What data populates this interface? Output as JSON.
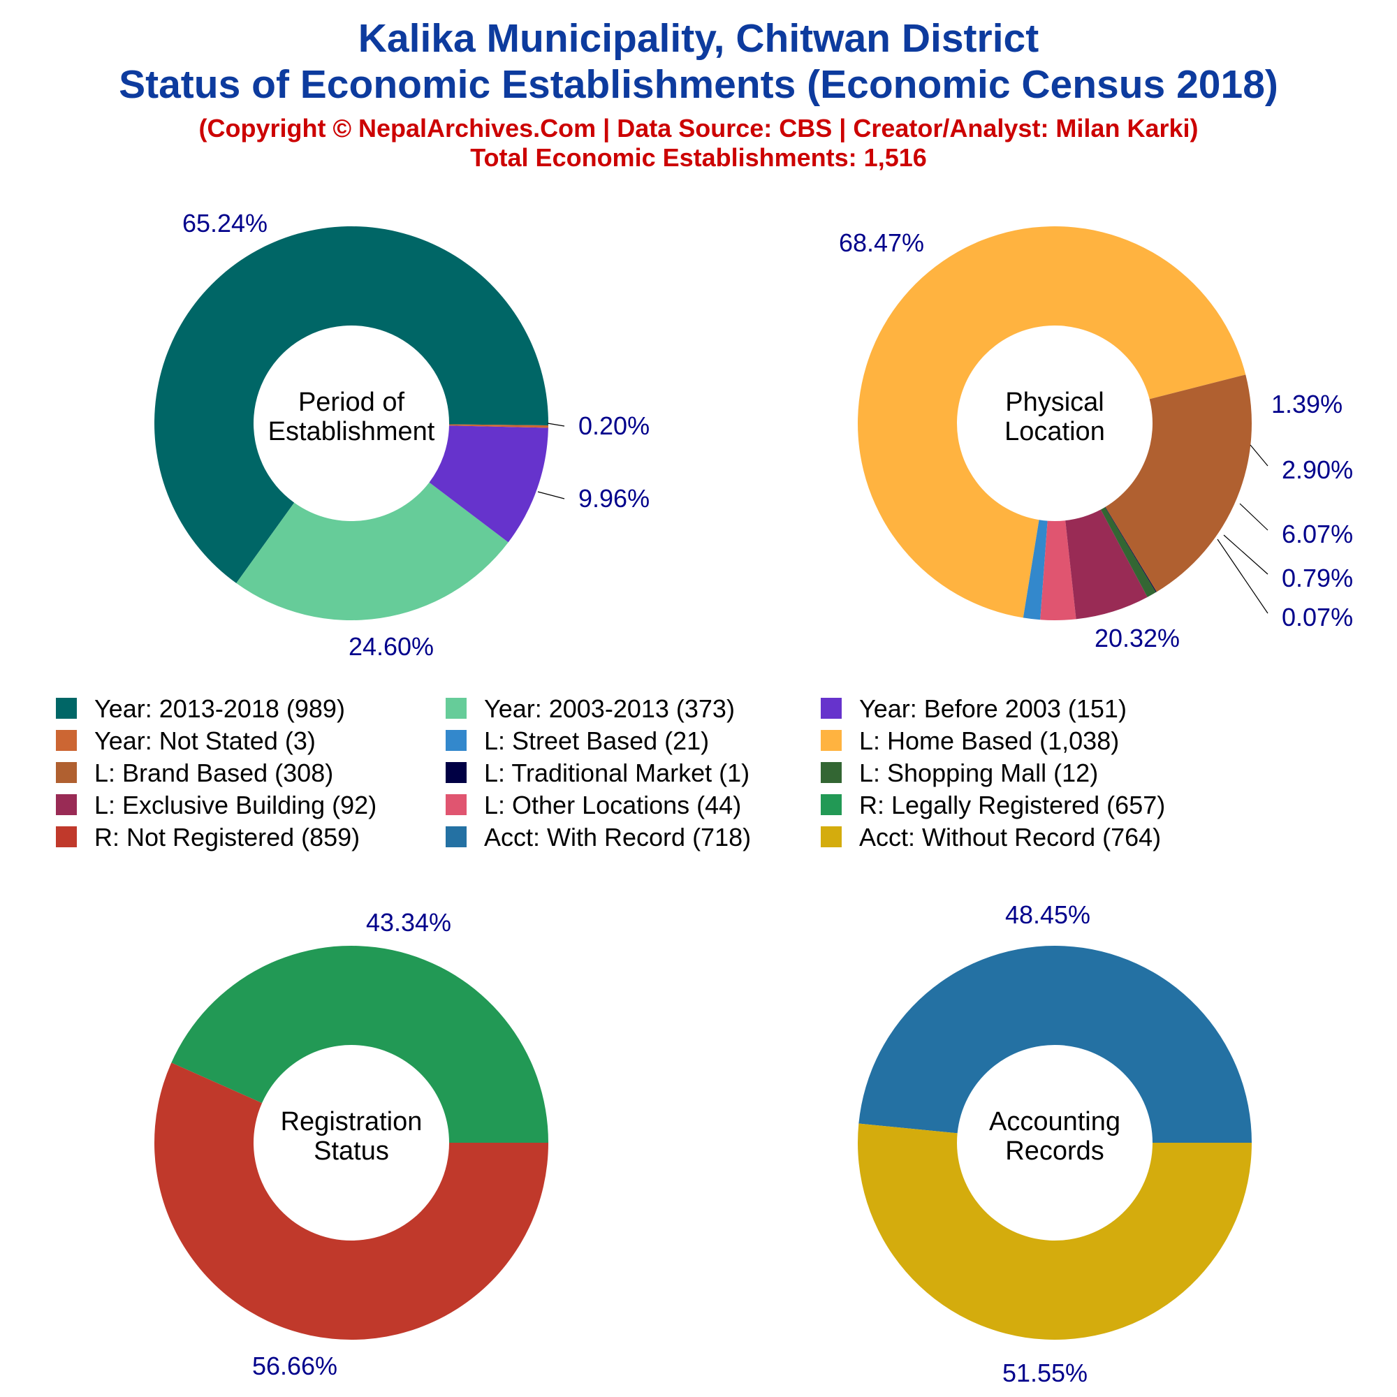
{
  "header": {
    "title_line1": "Kalika Municipality, Chitwan District",
    "title_line2": "Status of Economic Establishments (Economic Census 2018)",
    "copyright": "(Copyright © NepalArchives.Com | Data Source: CBS | Creator/Analyst: Milan Karki)",
    "total": "Total Economic Establishments: 1,516"
  },
  "colors": {
    "title": "#0d3b9e",
    "subtitle": "#cc0000",
    "percent_label": "#00008b"
  },
  "chart_data": [
    {
      "type": "pie",
      "center_label": [
        "Period of",
        "Establishment"
      ],
      "slices": [
        {
          "name": "Year: 2013-2018",
          "value": 989,
          "percent": "65.24%",
          "color": "#006666"
        },
        {
          "name": "Year: 2003-2013",
          "value": 373,
          "percent": "24.60%",
          "color": "#66cc99"
        },
        {
          "name": "Year: Before 2003",
          "value": 151,
          "percent": "9.96%",
          "color": "#6633cc"
        },
        {
          "name": "Year: Not Stated",
          "value": 3,
          "percent": "0.20%",
          "color": "#cc6633"
        }
      ]
    },
    {
      "type": "pie",
      "center_label": [
        "Physical",
        "Location"
      ],
      "slices": [
        {
          "name": "L: Home Based",
          "value": 1038,
          "percent": "68.47%",
          "color": "#ffb340"
        },
        {
          "name": "L: Street Based",
          "value": 21,
          "percent": "1.39%",
          "color": "#3388cc"
        },
        {
          "name": "L: Other Locations",
          "value": 44,
          "percent": "2.90%",
          "color": "#e05570"
        },
        {
          "name": "L: Exclusive Building",
          "value": 92,
          "percent": "6.07%",
          "color": "#992b55"
        },
        {
          "name": "L: Shopping Mall",
          "value": 12,
          "percent": "0.79%",
          "color": "#336633"
        },
        {
          "name": "L: Traditional Market",
          "value": 1,
          "percent": "0.07%",
          "color": "#000044"
        },
        {
          "name": "L: Brand Based",
          "value": 308,
          "percent": "20.32%",
          "color": "#b06030"
        }
      ]
    },
    {
      "type": "pie",
      "center_label": [
        "Registration",
        "Status"
      ],
      "slices": [
        {
          "name": "R: Legally Registered",
          "value": 657,
          "percent": "43.34%",
          "color": "#229955"
        },
        {
          "name": "R: Not Registered",
          "value": 859,
          "percent": "56.66%",
          "color": "#c0392b"
        }
      ]
    },
    {
      "type": "pie",
      "center_label": [
        "Accounting",
        "Records"
      ],
      "slices": [
        {
          "name": "Acct: With Record",
          "value": 718,
          "percent": "48.45%",
          "color": "#2471a3"
        },
        {
          "name": "Acct: Without Record",
          "value": 764,
          "percent": "51.55%",
          "color": "#d4ac0d"
        }
      ]
    }
  ],
  "legend": [
    {
      "label": "Year: 2013-2018 (989)",
      "color": "#006666"
    },
    {
      "label": "Year: 2003-2013 (373)",
      "color": "#66cc99"
    },
    {
      "label": "Year: Before 2003 (151)",
      "color": "#6633cc"
    },
    {
      "label": "Year: Not Stated (3)",
      "color": "#cc6633"
    },
    {
      "label": "L: Street Based (21)",
      "color": "#3388cc"
    },
    {
      "label": "L: Home Based (1,038)",
      "color": "#ffb340"
    },
    {
      "label": "L: Brand Based (308)",
      "color": "#b06030"
    },
    {
      "label": "L: Traditional Market (1)",
      "color": "#000044"
    },
    {
      "label": "L: Shopping Mall (12)",
      "color": "#336633"
    },
    {
      "label": "L: Exclusive Building (92)",
      "color": "#992b55"
    },
    {
      "label": "L: Other Locations (44)",
      "color": "#e05570"
    },
    {
      "label": "R: Legally Registered (657)",
      "color": "#229955"
    },
    {
      "label": "R: Not Registered (859)",
      "color": "#c0392b"
    },
    {
      "label": "Acct: With Record (718)",
      "color": "#2471a3"
    },
    {
      "label": "Acct: Without Record (764)",
      "color": "#d4ac0d"
    }
  ]
}
